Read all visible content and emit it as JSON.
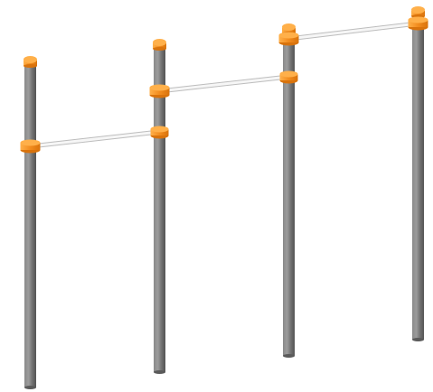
{
  "scene": {
    "subject": "stepped-pull-up-bars",
    "post_count": 4,
    "bar_count": 3,
    "colors": {
      "background": "#ffffff",
      "post": "#7a7a7a",
      "post_highlight": "#9a9a9a",
      "post_shadow": "#5a5a5a",
      "cap": "#f28c1e",
      "cap_highlight": "#ffb04a",
      "bar": "#f4f4f4",
      "bar_outline": "#bdbdbd"
    }
  }
}
